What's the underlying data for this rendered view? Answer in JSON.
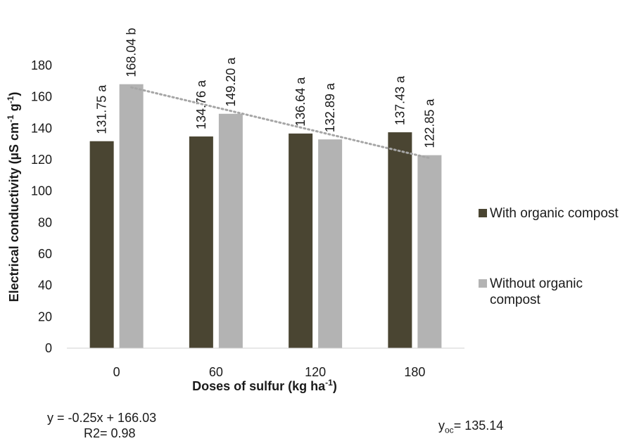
{
  "chart_data": {
    "type": "bar",
    "categories": [
      "0",
      "60",
      "120",
      "180"
    ],
    "series": [
      {
        "name": "With organic compost",
        "color": "#4a4532",
        "values": [
          131.75,
          134.76,
          136.64,
          137.43
        ],
        "labels": [
          "131.75 a",
          "134.76 a",
          "136.64 a",
          "137.43 a"
        ]
      },
      {
        "name": "Without organic compost",
        "color": "#b3b3b3",
        "values": [
          168.04,
          149.2,
          132.89,
          122.85
        ],
        "labels": [
          "168.04 b",
          "149.20 a",
          "132.89 a",
          "122.85 a"
        ]
      }
    ],
    "ylim": [
      0,
      180
    ],
    "yticks": [
      "0",
      "20",
      "40",
      "60",
      "80",
      "100",
      "120",
      "140",
      "160",
      "180"
    ],
    "ylabel": {
      "main": "Electrical conductivity (µS cm",
      "sup1": "-1",
      "mid": " g",
      "sup2": "-1",
      "end": ")"
    },
    "xlabel": {
      "main": "Doses of sulfur (kg ha",
      "sup": "-1",
      "end": ")"
    },
    "trendline": {
      "series": "Without organic compost",
      "x_from": 0,
      "x_to": 180,
      "y_from": 166.03,
      "y_to": 121.03,
      "color": "#a6a6a6",
      "style": "dotted"
    },
    "grid": false,
    "legend_position": "right"
  },
  "annotations": {
    "equation": "y = -0.25x + 166.03",
    "r2": "R2= 0.98",
    "yoc_base": "y",
    "yoc_sub": "oc",
    "yoc_value": "= 135.14"
  }
}
